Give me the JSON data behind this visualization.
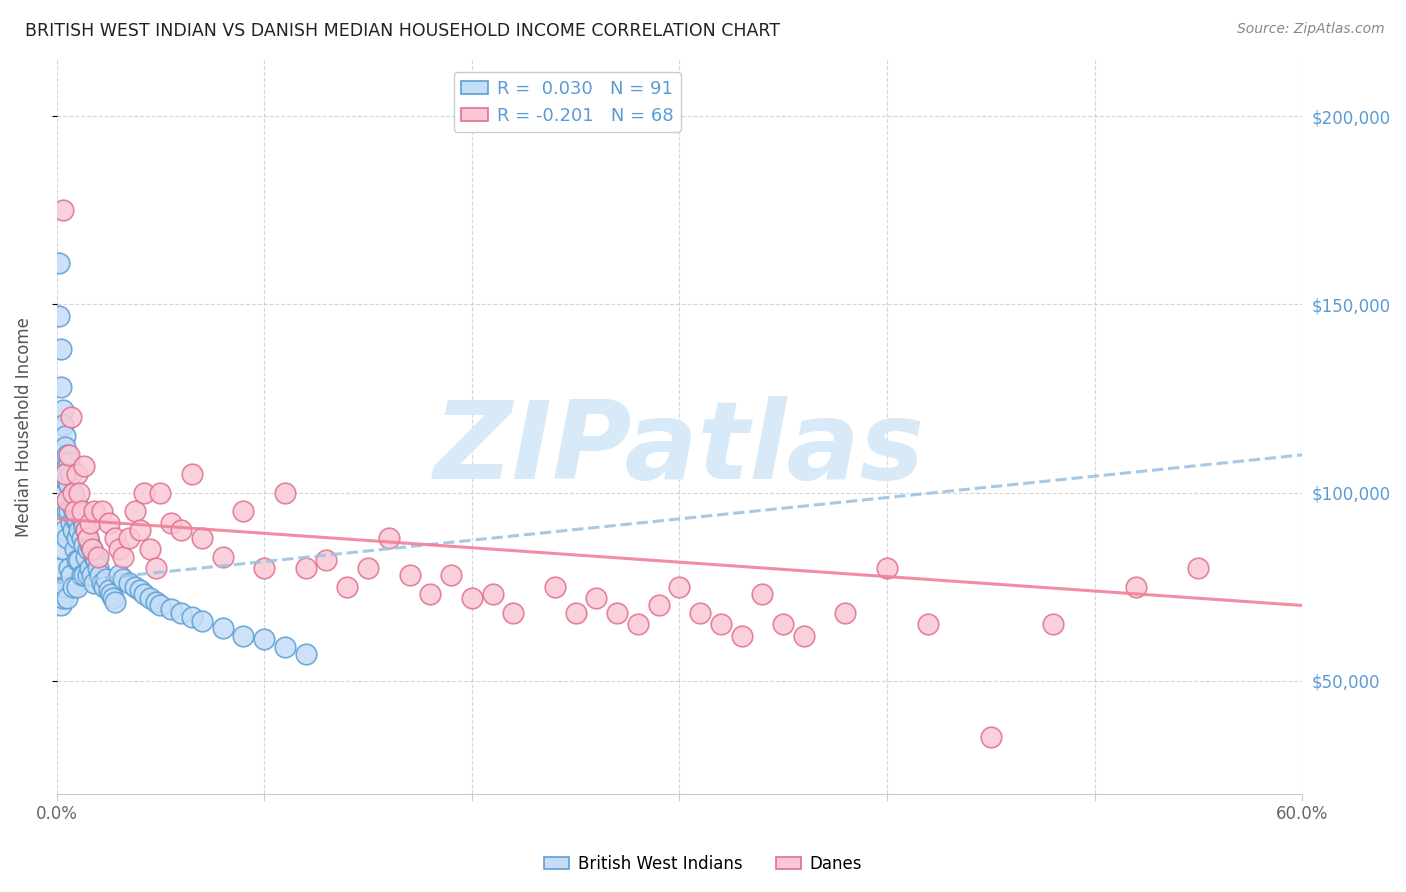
{
  "title": "BRITISH WEST INDIAN VS DANISH MEDIAN HOUSEHOLD INCOME CORRELATION CHART",
  "source": "Source: ZipAtlas.com",
  "ylabel": "Median Household Income",
  "y_ticks": [
    50000,
    100000,
    150000,
    200000
  ],
  "y_tick_labels": [
    "$50,000",
    "$100,000",
    "$150,000",
    "$200,000"
  ],
  "y_min": 20000,
  "y_max": 215000,
  "x_min": 0.0,
  "x_max": 0.6,
  "x_ticks": [
    0.0,
    0.1,
    0.2,
    0.3,
    0.4,
    0.5,
    0.6
  ],
  "x_tick_labels": [
    "0.0%",
    "",
    "",
    "",
    "",
    "",
    "60.0%"
  ],
  "legend1_label": "British West Indians",
  "legend2_label": "Danes",
  "R1": 0.03,
  "N1": 91,
  "R2": -0.201,
  "N2": 68,
  "blue_face": "#C5DDF7",
  "blue_edge": "#5A9FD4",
  "pink_face": "#FAC8D5",
  "pink_edge": "#E07090",
  "trend1_color": "#9DC3E6",
  "trend2_color": "#F08098",
  "watermark": "ZIPatlas",
  "watermark_color": "#D8EAF8",
  "background_color": "#FFFFFF",
  "grid_color": "#CCCCCC",
  "bwi_trend_x0": 0.0,
  "bwi_trend_y0": 76000,
  "bwi_trend_x1": 0.6,
  "bwi_trend_y1": 110000,
  "danes_trend_x0": 0.0,
  "danes_trend_y0": 93000,
  "danes_trend_x1": 0.6,
  "danes_trend_y1": 70000,
  "bwi_x": [
    0.001,
    0.001,
    0.001,
    0.002,
    0.002,
    0.002,
    0.002,
    0.003,
    0.003,
    0.003,
    0.003,
    0.003,
    0.004,
    0.004,
    0.004,
    0.004,
    0.004,
    0.005,
    0.005,
    0.005,
    0.005,
    0.005,
    0.005,
    0.006,
    0.006,
    0.006,
    0.006,
    0.007,
    0.007,
    0.007,
    0.007,
    0.008,
    0.008,
    0.008,
    0.008,
    0.009,
    0.009,
    0.009,
    0.01,
    0.01,
    0.01,
    0.01,
    0.01,
    0.011,
    0.011,
    0.011,
    0.012,
    0.012,
    0.012,
    0.013,
    0.013,
    0.013,
    0.014,
    0.014,
    0.015,
    0.015,
    0.015,
    0.016,
    0.016,
    0.017,
    0.017,
    0.018,
    0.018,
    0.019,
    0.02,
    0.021,
    0.022,
    0.023,
    0.024,
    0.025,
    0.026,
    0.027,
    0.028,
    0.03,
    0.032,
    0.035,
    0.038,
    0.04,
    0.042,
    0.045,
    0.048,
    0.05,
    0.055,
    0.06,
    0.065,
    0.07,
    0.08,
    0.09,
    0.1,
    0.11,
    0.12
  ],
  "bwi_y": [
    161000,
    147000,
    75000,
    138000,
    128000,
    80000,
    70000,
    122000,
    118000,
    105000,
    85000,
    72000,
    115000,
    112000,
    100000,
    90000,
    75000,
    110000,
    107000,
    103000,
    95000,
    88000,
    72000,
    108000,
    102000,
    95000,
    80000,
    105000,
    99000,
    92000,
    78000,
    100000,
    96000,
    90000,
    75000,
    98000,
    93000,
    85000,
    97000,
    93000,
    88000,
    82000,
    75000,
    95000,
    90000,
    82000,
    93000,
    88000,
    78000,
    91000,
    86000,
    78000,
    90000,
    83000,
    88000,
    85000,
    78000,
    86000,
    80000,
    85000,
    78000,
    83000,
    76000,
    82000,
    80000,
    78000,
    76000,
    75000,
    77000,
    74000,
    73000,
    72000,
    71000,
    78000,
    77000,
    76000,
    75000,
    74000,
    73000,
    72000,
    71000,
    70000,
    69000,
    68000,
    67000,
    66000,
    64000,
    62000,
    61000,
    59000,
    57000
  ],
  "danes_x": [
    0.003,
    0.004,
    0.005,
    0.006,
    0.007,
    0.008,
    0.009,
    0.01,
    0.011,
    0.012,
    0.013,
    0.014,
    0.015,
    0.016,
    0.017,
    0.018,
    0.02,
    0.022,
    0.025,
    0.028,
    0.03,
    0.032,
    0.035,
    0.038,
    0.04,
    0.042,
    0.045,
    0.048,
    0.05,
    0.055,
    0.06,
    0.065,
    0.07,
    0.08,
    0.09,
    0.1,
    0.11,
    0.12,
    0.13,
    0.14,
    0.15,
    0.16,
    0.17,
    0.18,
    0.19,
    0.2,
    0.21,
    0.22,
    0.24,
    0.25,
    0.26,
    0.27,
    0.28,
    0.29,
    0.3,
    0.31,
    0.32,
    0.33,
    0.34,
    0.35,
    0.36,
    0.38,
    0.4,
    0.42,
    0.45,
    0.48,
    0.52,
    0.55
  ],
  "danes_y": [
    175000,
    105000,
    98000,
    110000,
    120000,
    100000,
    95000,
    105000,
    100000,
    95000,
    107000,
    90000,
    88000,
    92000,
    85000,
    95000,
    83000,
    95000,
    92000,
    88000,
    85000,
    83000,
    88000,
    95000,
    90000,
    100000,
    85000,
    80000,
    100000,
    92000,
    90000,
    105000,
    88000,
    83000,
    95000,
    80000,
    100000,
    80000,
    82000,
    75000,
    80000,
    88000,
    78000,
    73000,
    78000,
    72000,
    73000,
    68000,
    75000,
    68000,
    72000,
    68000,
    65000,
    70000,
    75000,
    68000,
    65000,
    62000,
    73000,
    65000,
    62000,
    68000,
    80000,
    65000,
    35000,
    65000,
    75000,
    80000
  ]
}
